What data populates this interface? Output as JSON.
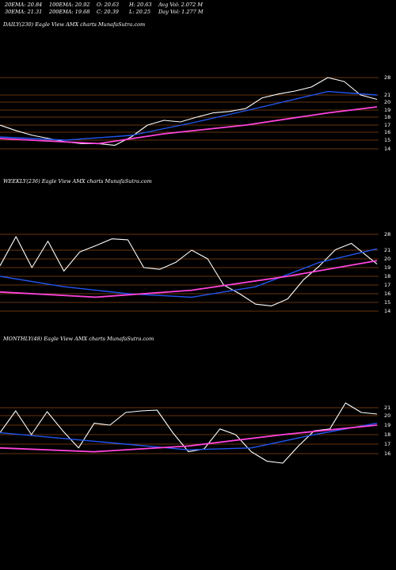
{
  "header": {
    "row1": [
      {
        "name": "ema20-stat",
        "text": "20EMA: 20.84"
      },
      {
        "name": "ema100-stat",
        "text": "100EMA: 20.92"
      },
      {
        "name": "open-stat",
        "text": "O: 20.63"
      },
      {
        "name": "high-stat",
        "text": "H: 20.63"
      },
      {
        "name": "avgvol-stat",
        "text": "Avg Vol: 2.072  M"
      }
    ],
    "row2": [
      {
        "name": "ema30-stat",
        "text": "30EMA: 21.31"
      },
      {
        "name": "ema200-stat",
        "text": "200EMA: 19.68"
      },
      {
        "name": "close-stat",
        "text": "C: 20.39"
      },
      {
        "name": "low-stat",
        "text": "L: 20.25"
      },
      {
        "name": "dayvol-stat",
        "text": "Day Vol: 1.277  M"
      }
    ]
  },
  "panels": {
    "daily": {
      "label": "DAILY(230) Eagle   View  AMX  charts MunafaSutra.com"
    },
    "weekly": {
      "label": "WEEKLY(236) Eagle   View  AMX  charts MunafaSutra.com"
    },
    "monthly": {
      "label": "MONTHLY(48) Eagle   View  AMX  charts MunafaSutra.com"
    }
  },
  "colors": {
    "background": "#000000",
    "price": "#ffffff",
    "gridline": "#8b4513",
    "ema_blue": "#2255ee",
    "ema_pink": "#ff44dd",
    "ema_orange": "#d2691e",
    "ema_white": "#cccccc"
  },
  "chart_data": [
    {
      "type": "line",
      "panel": "daily",
      "ticker": "AMX",
      "y_ticks": [
        28,
        21,
        20,
        19,
        18,
        17,
        16,
        15,
        14
      ],
      "series": [
        {
          "name": "",
          "color": "white",
          "x": [
            0,
            10,
            20,
            30,
            40,
            50,
            60,
            70,
            80,
            90,
            100,
            110,
            120,
            130,
            140,
            150,
            160,
            170,
            180,
            190,
            200,
            210,
            220,
            230
          ],
          "y": [
            17.0,
            16.2,
            15.6,
            15.2,
            14.8,
            14.6,
            14.6,
            14.4,
            15.4,
            17.0,
            17.6,
            17.4,
            18.0,
            18.6,
            18.8,
            19.2,
            20.6,
            21.4,
            22.6,
            24.2,
            28.0,
            26.4,
            21.0,
            20.39
          ]
        },
        {
          "name": "",
          "color": "blue",
          "x": [
            0,
            40,
            80,
            120,
            160,
            200,
            230
          ],
          "y": [
            15.4,
            15.0,
            15.6,
            17.4,
            19.4,
            22.4,
            21.0
          ]
        },
        {
          "name": "",
          "color": "pink",
          "x": [
            0,
            60,
            100,
            150,
            200,
            230
          ],
          "y": [
            15.2,
            14.6,
            15.8,
            17.0,
            18.6,
            19.4
          ]
        }
      ]
    },
    {
      "type": "line",
      "panel": "weekly",
      "ticker": "AMX",
      "y_ticks": [
        28,
        21,
        20,
        19,
        18,
        17,
        16,
        15,
        14
      ],
      "series": [
        {
          "name": "",
          "color": "white",
          "x": [
            0,
            10,
            20,
            30,
            40,
            50,
            60,
            70,
            80,
            90,
            100,
            110,
            120,
            130,
            140,
            150,
            160,
            170,
            180,
            190,
            200,
            210,
            220,
            236
          ],
          "y": [
            19.2,
            27.0,
            19.0,
            25.0,
            18.6,
            20.8,
            23.0,
            26.0,
            25.6,
            19.0,
            18.8,
            19.6,
            21.0,
            20.0,
            17.0,
            16.0,
            14.8,
            14.6,
            15.4,
            17.6,
            19.2,
            21.2,
            24.0,
            19.4
          ]
        },
        {
          "name": "",
          "color": "blue",
          "x": [
            0,
            40,
            80,
            120,
            160,
            200,
            236
          ],
          "y": [
            18.0,
            16.8,
            16.0,
            15.6,
            16.8,
            19.6,
            21.6
          ]
        },
        {
          "name": "",
          "color": "pink",
          "x": [
            0,
            60,
            120,
            180,
            236
          ],
          "y": [
            16.2,
            15.6,
            16.4,
            18.0,
            19.8
          ]
        }
      ]
    },
    {
      "type": "line",
      "panel": "monthly",
      "ticker": "AMX",
      "y_ticks": [
        21,
        20,
        19,
        18,
        17,
        16
      ],
      "series": [
        {
          "name": "",
          "color": "white",
          "x": [
            0,
            2,
            4,
            6,
            8,
            10,
            12,
            14,
            16,
            18,
            20,
            22,
            24,
            26,
            28,
            30,
            32,
            34,
            36,
            38,
            40,
            42,
            44,
            46,
            48
          ],
          "y": [
            18.2,
            20.6,
            18.0,
            20.5,
            18.4,
            16.6,
            19.2,
            19.0,
            20.4,
            20.6,
            20.7,
            18.2,
            16.2,
            16.5,
            18.6,
            18.0,
            16.2,
            15.2,
            15.0,
            16.8,
            18.4,
            18.6,
            21.6,
            20.4,
            20.2
          ]
        },
        {
          "name": "",
          "color": "blue",
          "x": [
            0,
            8,
            16,
            24,
            32,
            40,
            48
          ],
          "y": [
            18.2,
            17.6,
            17.0,
            16.4,
            16.6,
            18.0,
            19.2
          ]
        },
        {
          "name": "",
          "color": "pink",
          "x": [
            0,
            12,
            24,
            36,
            48
          ],
          "y": [
            16.6,
            16.2,
            16.8,
            18.0,
            19.0
          ]
        }
      ]
    }
  ]
}
